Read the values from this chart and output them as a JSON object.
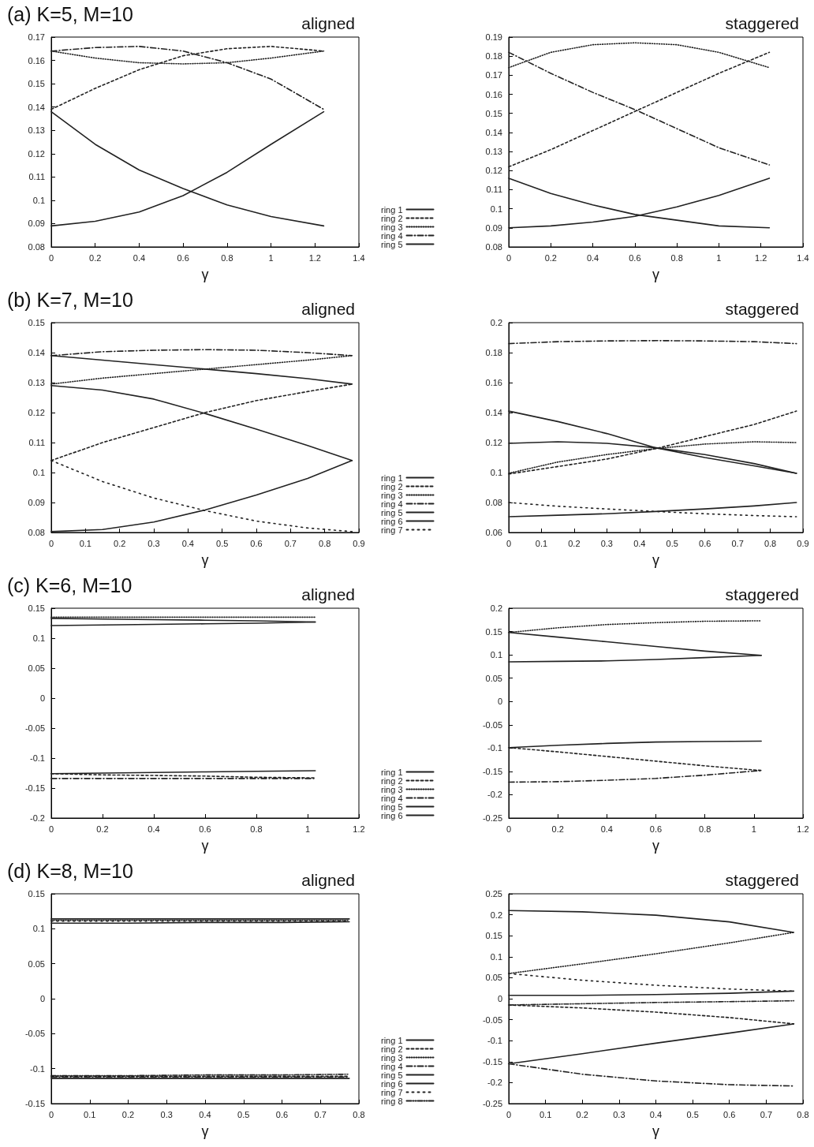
{
  "chart_data": [
    {
      "type": "line",
      "title": "(a) K=5, M=10",
      "subtitle": "aligned",
      "xlabel": "γ",
      "xlim": [
        0,
        1.4
      ],
      "xticks": [
        0,
        0.2,
        0.4,
        0.6,
        0.8,
        1,
        1.2,
        1.4
      ],
      "ylim": [
        0.08,
        0.17
      ],
      "yticks": [
        0.08,
        0.09,
        0.1,
        0.11,
        0.12,
        0.13,
        0.14,
        0.15,
        0.16,
        0.17
      ],
      "legend": "right",
      "grid": false,
      "marker": "none",
      "x": [
        0,
        0.2,
        0.4,
        0.6,
        0.8,
        1.0,
        1.24
      ],
      "series": [
        {
          "name": "ring 1",
          "color": "#222222",
          "line_style": "solid",
          "values": [
            0.138,
            0.124,
            0.113,
            0.105,
            0.098,
            0.093,
            0.089
          ]
        },
        {
          "name": "ring 2",
          "color": "#222222",
          "line_style": "dashed",
          "values": [
            0.139,
            0.148,
            0.156,
            0.162,
            0.165,
            0.166,
            0.164
          ]
        },
        {
          "name": "ring 3",
          "color": "#222222",
          "line_style": "dotted",
          "values": [
            0.164,
            0.161,
            0.159,
            0.1585,
            0.159,
            0.161,
            0.164
          ]
        },
        {
          "name": "ring 4",
          "color": "#222222",
          "line_style": "dashdot",
          "values": [
            0.164,
            0.1655,
            0.166,
            0.164,
            0.159,
            0.152,
            0.139
          ]
        },
        {
          "name": "ring 5",
          "color": "#222222",
          "line_style": "solid",
          "values": [
            0.089,
            0.091,
            0.095,
            0.102,
            0.112,
            0.124,
            0.138
          ]
        }
      ]
    },
    {
      "type": "line",
      "subtitle": "staggered",
      "xlabel": "γ",
      "xlim": [
        0,
        1.4
      ],
      "xticks": [
        0,
        0.2,
        0.4,
        0.6,
        0.8,
        1,
        1.2,
        1.4
      ],
      "ylim": [
        0.08,
        0.19
      ],
      "yticks": [
        0.08,
        0.09,
        0.1,
        0.11,
        0.12,
        0.13,
        0.14,
        0.15,
        0.16,
        0.17,
        0.18,
        0.19
      ],
      "grid": false,
      "marker": "none",
      "x": [
        0,
        0.2,
        0.4,
        0.6,
        0.8,
        1.0,
        1.24
      ],
      "series": [
        {
          "color": "#222222",
          "line_style": "solid",
          "values": [
            0.116,
            0.108,
            0.102,
            0.097,
            0.094,
            0.091,
            0.09
          ]
        },
        {
          "color": "#222222",
          "line_style": "dashed",
          "values": [
            0.122,
            0.131,
            0.141,
            0.151,
            0.161,
            0.171,
            0.182
          ]
        },
        {
          "color": "#222222",
          "line_style": "dotted",
          "values": [
            0.174,
            0.182,
            0.186,
            0.187,
            0.186,
            0.182,
            0.174
          ]
        },
        {
          "color": "#222222",
          "line_style": "dashdot",
          "values": [
            0.182,
            0.171,
            0.161,
            0.152,
            0.142,
            0.132,
            0.123
          ]
        },
        {
          "color": "#222222",
          "line_style": "solid",
          "values": [
            0.09,
            0.091,
            0.093,
            0.096,
            0.101,
            0.107,
            0.116
          ]
        }
      ]
    },
    {
      "type": "line",
      "title": "(b) K=7, M=10",
      "subtitle": "aligned",
      "xlabel": "γ",
      "xlim": [
        0,
        0.9
      ],
      "xticks": [
        0,
        0.1,
        0.2,
        0.3,
        0.4,
        0.5,
        0.6,
        0.7,
        0.8,
        0.9
      ],
      "ylim": [
        0.08,
        0.15
      ],
      "yticks": [
        0.08,
        0.09,
        0.1,
        0.11,
        0.12,
        0.13,
        0.14,
        0.15
      ],
      "legend": "right",
      "grid": false,
      "marker": "none",
      "x": [
        0,
        0.15,
        0.3,
        0.45,
        0.6,
        0.75,
        0.88
      ],
      "series": [
        {
          "name": "ring 1",
          "color": "#222222",
          "line_style": "solid",
          "values": [
            0.139,
            0.1375,
            0.136,
            0.1345,
            0.133,
            0.1313,
            0.1295
          ]
        },
        {
          "name": "ring 2",
          "color": "#222222",
          "line_style": "dashed",
          "values": [
            0.104,
            0.11,
            0.115,
            0.12,
            0.124,
            0.127,
            0.1295
          ]
        },
        {
          "name": "ring 3",
          "color": "#222222",
          "line_style": "dotted",
          "values": [
            0.1295,
            0.1315,
            0.133,
            0.1345,
            0.136,
            0.1375,
            0.139
          ]
        },
        {
          "name": "ring 4",
          "color": "#222222",
          "line_style": "dashdot",
          "values": [
            0.139,
            0.1403,
            0.1408,
            0.141,
            0.1408,
            0.14,
            0.139
          ]
        },
        {
          "name": "ring 5",
          "color": "#222222",
          "line_style": "solid",
          "values": [
            0.129,
            0.1275,
            0.1245,
            0.1197,
            0.1145,
            0.109,
            0.104
          ]
        },
        {
          "name": "ring 6",
          "color": "#222222",
          "line_style": "solid",
          "values": [
            0.0803,
            0.081,
            0.0835,
            0.0875,
            0.0925,
            0.098,
            0.104
          ]
        },
        {
          "name": "ring 7",
          "color": "#222222",
          "line_style": "sparse",
          "values": [
            0.104,
            0.097,
            0.0915,
            0.0873,
            0.0838,
            0.0815,
            0.0803
          ]
        }
      ]
    },
    {
      "type": "line",
      "subtitle": "staggered",
      "xlabel": "γ",
      "xlim": [
        0,
        0.9
      ],
      "xticks": [
        0,
        0.1,
        0.2,
        0.3,
        0.4,
        0.5,
        0.6,
        0.7,
        0.8,
        0.9
      ],
      "ylim": [
        0.06,
        0.2
      ],
      "yticks": [
        0.06,
        0.08,
        0.1,
        0.12,
        0.14,
        0.16,
        0.18,
        0.2
      ],
      "grid": false,
      "marker": "none",
      "x": [
        0,
        0.15,
        0.3,
        0.45,
        0.6,
        0.75,
        0.88
      ],
      "series": [
        {
          "color": "#222222",
          "line_style": "solid",
          "values": [
            0.141,
            0.134,
            0.126,
            0.1165,
            0.11,
            0.1045,
            0.0995
          ]
        },
        {
          "color": "#222222",
          "line_style": "dashed",
          "values": [
            0.099,
            0.104,
            0.109,
            0.116,
            0.124,
            0.132,
            0.141
          ]
        },
        {
          "color": "#222222",
          "line_style": "dotted",
          "values": [
            0.0995,
            0.107,
            0.112,
            0.116,
            0.119,
            0.1205,
            0.12
          ]
        },
        {
          "color": "#222222",
          "line_style": "dashdot",
          "values": [
            0.186,
            0.1873,
            0.1878,
            0.188,
            0.1878,
            0.1873,
            0.186
          ]
        },
        {
          "color": "#222222",
          "line_style": "solid",
          "values": [
            0.1195,
            0.1205,
            0.1195,
            0.1165,
            0.112,
            0.106,
            0.0995
          ]
        },
        {
          "color": "#222222",
          "line_style": "solid",
          "values": [
            0.0705,
            0.0715,
            0.0725,
            0.074,
            0.0757,
            0.0777,
            0.08
          ]
        },
        {
          "color": "#222222",
          "line_style": "sparse",
          "values": [
            0.08,
            0.0775,
            0.0757,
            0.074,
            0.0725,
            0.0713,
            0.0705
          ]
        }
      ]
    },
    {
      "type": "line",
      "title": "(c) K=6, M=10",
      "subtitle": "aligned",
      "xlabel": "γ",
      "xlim": [
        0,
        1.2
      ],
      "xticks": [
        0,
        0.2,
        0.4,
        0.6,
        0.8,
        1,
        1.2
      ],
      "ylim": [
        -0.2,
        0.15
      ],
      "yticks": [
        -0.2,
        -0.15,
        -0.1,
        -0.05,
        0,
        0.05,
        0.1,
        0.15
      ],
      "legend": "right",
      "grid": false,
      "marker": "none",
      "x": [
        0,
        0.2,
        0.4,
        0.6,
        0.8,
        1.03
      ],
      "series": [
        {
          "name": "ring 1",
          "color": "#222222",
          "line_style": "solid",
          "values": [
            0.133,
            0.132,
            0.131,
            0.13,
            0.129,
            0.127
          ]
        },
        {
          "name": "ring 2",
          "color": "#222222",
          "line_style": "dashed",
          "values": [
            -0.126,
            -0.128,
            -0.129,
            -0.13,
            -0.132,
            -0.133
          ]
        },
        {
          "name": "ring 3",
          "color": "#222222",
          "line_style": "dotted",
          "values": [
            0.135,
            0.135,
            0.135,
            0.135,
            0.135,
            0.135
          ]
        },
        {
          "name": "ring 4",
          "color": "#222222",
          "line_style": "dashdot",
          "values": [
            -0.134,
            -0.134,
            -0.134,
            -0.134,
            -0.134,
            -0.134
          ]
        },
        {
          "name": "ring 5",
          "color": "#222222",
          "line_style": "solid",
          "values": [
            0.121,
            0.122,
            0.123,
            0.124,
            0.125,
            0.127
          ]
        },
        {
          "name": "ring 6",
          "color": "#222222",
          "line_style": "solid",
          "values": [
            -0.126,
            -0.125,
            -0.124,
            -0.123,
            -0.122,
            -0.121
          ]
        }
      ]
    },
    {
      "type": "line",
      "subtitle": "staggered",
      "xlabel": "γ",
      "xlim": [
        0,
        1.2
      ],
      "xticks": [
        0,
        0.2,
        0.4,
        0.6,
        0.8,
        1,
        1.2
      ],
      "ylim": [
        -0.25,
        0.2
      ],
      "yticks": [
        -0.25,
        -0.2,
        -0.15,
        -0.1,
        -0.05,
        0,
        0.05,
        0.1,
        0.15,
        0.2
      ],
      "grid": false,
      "marker": "none",
      "x": [
        0,
        0.2,
        0.4,
        0.6,
        0.8,
        1.03
      ],
      "series": [
        {
          "color": "#222222",
          "line_style": "solid",
          "values": [
            0.148,
            0.138,
            0.128,
            0.118,
            0.108,
            0.099
          ]
        },
        {
          "color": "#222222",
          "line_style": "dashed",
          "values": [
            -0.099,
            -0.108,
            -0.118,
            -0.128,
            -0.138,
            -0.148
          ]
        },
        {
          "color": "#222222",
          "line_style": "dotted",
          "values": [
            0.148,
            0.158,
            0.165,
            0.169,
            0.172,
            0.173
          ]
        },
        {
          "color": "#222222",
          "line_style": "dashdot",
          "values": [
            -0.173,
            -0.172,
            -0.169,
            -0.165,
            -0.158,
            -0.148
          ]
        },
        {
          "color": "#222222",
          "line_style": "solid",
          "values": [
            0.085,
            0.086,
            0.087,
            0.09,
            0.094,
            0.099
          ]
        },
        {
          "color": "#222222",
          "line_style": "solid",
          "values": [
            -0.099,
            -0.094,
            -0.09,
            -0.087,
            -0.086,
            -0.085
          ]
        }
      ]
    },
    {
      "type": "line",
      "title": "(d) K=8, M=10",
      "subtitle": "aligned",
      "xlabel": "γ",
      "xlim": [
        0,
        0.8
      ],
      "xticks": [
        0,
        0.1,
        0.2,
        0.3,
        0.4,
        0.5,
        0.6,
        0.7,
        0.8
      ],
      "ylim": [
        -0.15,
        0.15
      ],
      "yticks": [
        -0.15,
        -0.1,
        -0.05,
        0,
        0.05,
        0.1,
        0.15
      ],
      "legend": "right",
      "grid": false,
      "marker": "none",
      "x": [
        0,
        0.2,
        0.4,
        0.6,
        0.775
      ],
      "series": [
        {
          "name": "ring 1",
          "color": "#222222",
          "line_style": "solid",
          "values": [
            0.114,
            0.114,
            0.114,
            0.114,
            0.114
          ]
        },
        {
          "name": "ring 2",
          "color": "#222222",
          "line_style": "dashed",
          "values": [
            -0.111,
            -0.111,
            -0.111,
            -0.111,
            -0.111
          ]
        },
        {
          "name": "ring 3",
          "color": "#222222",
          "line_style": "dotted",
          "values": [
            0.112,
            0.112,
            0.112,
            0.112,
            0.112
          ]
        },
        {
          "name": "ring 4",
          "color": "#222222",
          "line_style": "dashdot",
          "values": [
            -0.112,
            -0.112,
            -0.112,
            -0.112,
            -0.112
          ]
        },
        {
          "name": "ring 5",
          "color": "#222222",
          "line_style": "solid",
          "values": [
            0.108,
            0.108,
            0.109,
            0.109,
            0.11
          ]
        },
        {
          "name": "ring 6",
          "color": "#222222",
          "line_style": "solid",
          "values": [
            -0.114,
            -0.114,
            -0.114,
            -0.114,
            -0.114
          ]
        },
        {
          "name": "ring 7",
          "color": "#222222",
          "line_style": "sparse",
          "values": [
            0.111,
            0.111,
            0.111,
            0.111,
            0.111
          ]
        },
        {
          "name": "ring 8",
          "color": "#222222",
          "line_style": "dashdotdot",
          "values": [
            -0.11,
            -0.11,
            -0.109,
            -0.109,
            -0.108
          ]
        }
      ]
    },
    {
      "type": "line",
      "subtitle": "staggered",
      "xlabel": "γ",
      "xlim": [
        0,
        0.8
      ],
      "xticks": [
        0,
        0.1,
        0.2,
        0.3,
        0.4,
        0.5,
        0.6,
        0.7,
        0.8
      ],
      "ylim": [
        -0.25,
        0.25
      ],
      "yticks": [
        -0.25,
        -0.2,
        -0.15,
        -0.1,
        -0.05,
        0,
        0.05,
        0.1,
        0.15,
        0.2,
        0.25
      ],
      "grid": false,
      "marker": "none",
      "x": [
        0,
        0.2,
        0.4,
        0.6,
        0.775
      ],
      "series": [
        {
          "color": "#222222",
          "line_style": "solid",
          "values": [
            0.21,
            0.207,
            0.199,
            0.183,
            0.158
          ]
        },
        {
          "color": "#222222",
          "line_style": "dashed",
          "values": [
            -0.015,
            -0.022,
            -0.032,
            -0.045,
            -0.06
          ]
        },
        {
          "color": "#222222",
          "line_style": "dotted",
          "values": [
            0.06,
            0.083,
            0.107,
            0.133,
            0.158
          ]
        },
        {
          "color": "#222222",
          "line_style": "dashdot",
          "values": [
            -0.155,
            -0.18,
            -0.196,
            -0.205,
            -0.208
          ]
        },
        {
          "color": "#222222",
          "line_style": "solid",
          "values": [
            -0.155,
            -0.131,
            -0.106,
            -0.082,
            -0.06
          ]
        },
        {
          "color": "#222222",
          "line_style": "solid",
          "values": [
            0.008,
            0.008,
            0.01,
            0.013,
            0.018
          ]
        },
        {
          "color": "#222222",
          "line_style": "sparse",
          "values": [
            0.06,
            0.044,
            0.032,
            0.023,
            0.018
          ]
        },
        {
          "color": "#222222",
          "line_style": "dashdotdot",
          "values": [
            -0.015,
            -0.012,
            -0.009,
            -0.007,
            -0.005
          ]
        }
      ]
    }
  ]
}
